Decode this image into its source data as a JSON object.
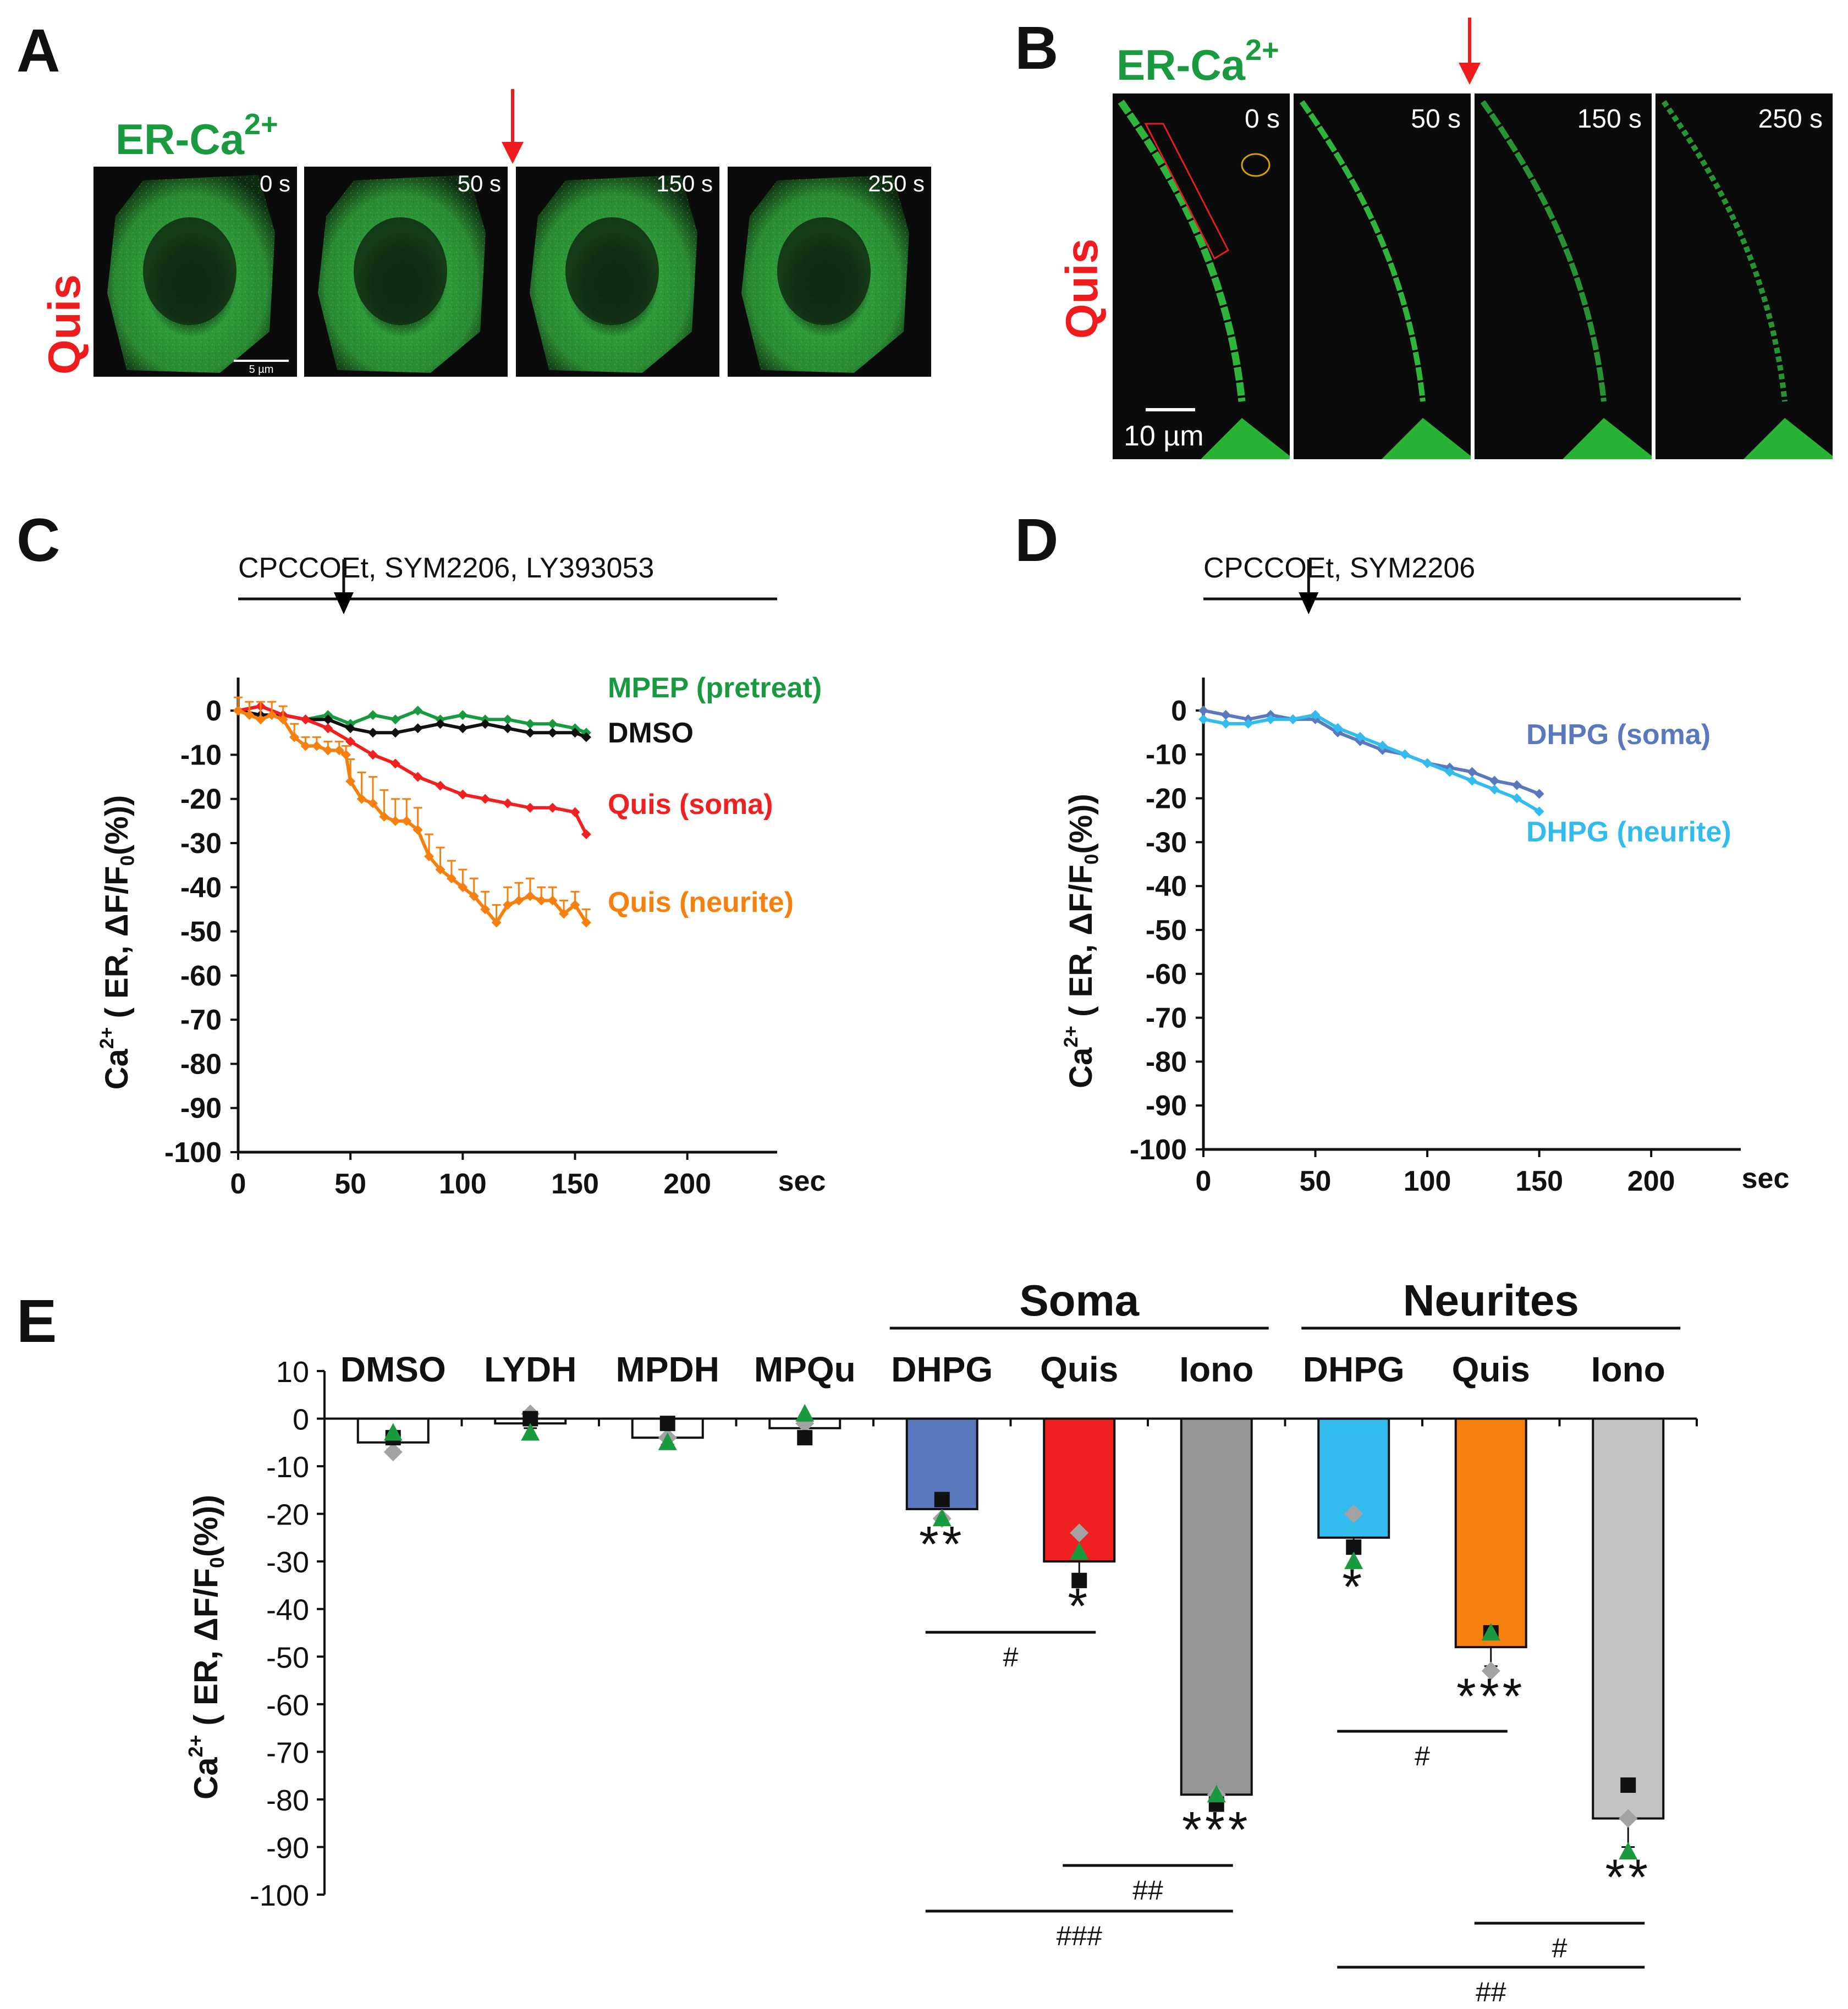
{
  "panels": {
    "A": {
      "letter": "A",
      "probe_label": "ER-Ca",
      "probe_sup": "2+",
      "condition": "Quis",
      "timepoints": [
        "0 s",
        "50 s",
        "150 s",
        "250 s"
      ],
      "scale_bar": "5 µm"
    },
    "B": {
      "letter": "B",
      "probe_label": "ER-Ca",
      "probe_sup": "2+",
      "condition": "Quis",
      "timepoints": [
        "0 s",
        "50 s",
        "150 s",
        "250 s"
      ],
      "scale_bar": "10 µm"
    },
    "C": {
      "letter": "C",
      "treatment": "CPCCOEt, SYM2206, LY393053"
    },
    "D": {
      "letter": "D",
      "treatment": "CPCCOEt, SYM2206"
    },
    "E": {
      "letter": "E"
    }
  },
  "ylabel": {
    "ca": "Ca",
    "sup": "2+",
    "rest": " ( ER, ΔF/F",
    "sub": "0",
    "end": "(%))"
  },
  "colors": {
    "mpep": "#1a9a3e",
    "dmso": "#111111",
    "quis_soma": "#f02020",
    "quis_neurite": "#f77f0e",
    "dhpg_soma": "#5a78be",
    "dhpg_neurite": "#33bbee",
    "iono_soma": "#959595",
    "iono_neurite": "#c4c4c4",
    "arrow_red": "#ee1c1c",
    "green_text": "#1a9a3e",
    "red_text": "#ee1c1c"
  },
  "chart_data": [
    {
      "id": "C",
      "type": "line",
      "xlabel": "sec",
      "xlim": [
        0,
        240
      ],
      "ylim": [
        -100,
        5
      ],
      "xticks": [
        0,
        50,
        100,
        150,
        200
      ],
      "yticks": [
        0,
        -10,
        -20,
        -30,
        -40,
        -50,
        -60,
        -70,
        -80,
        -90,
        -100
      ],
      "stimulus_time": 47,
      "series": [
        {
          "name": "MPEP (pretreat)",
          "color": "#1a9a3e",
          "x": [
            0,
            10,
            20,
            30,
            40,
            50,
            60,
            70,
            80,
            90,
            100,
            110,
            120,
            130,
            140,
            150,
            155
          ],
          "y": [
            0,
            1,
            -1,
            -2,
            -1,
            -3,
            -1,
            -2,
            0,
            -2,
            -1,
            -2,
            -2,
            -3,
            -3,
            -4,
            -5
          ]
        },
        {
          "name": "DMSO",
          "color": "#111111",
          "x": [
            0,
            10,
            20,
            30,
            40,
            50,
            60,
            70,
            80,
            90,
            100,
            110,
            120,
            130,
            140,
            150,
            155
          ],
          "y": [
            0,
            -1,
            -1,
            -2,
            -2,
            -4,
            -5,
            -5,
            -4,
            -3,
            -4,
            -3,
            -4,
            -5,
            -5,
            -5,
            -6
          ]
        },
        {
          "name": "Quis (soma)",
          "color": "#f02020",
          "x": [
            0,
            10,
            20,
            30,
            40,
            50,
            60,
            70,
            80,
            90,
            100,
            110,
            120,
            130,
            140,
            150,
            155
          ],
          "y": [
            0,
            1,
            -1,
            -2,
            -4,
            -7,
            -10,
            -12,
            -15,
            -17,
            -19,
            -20,
            -21,
            -22,
            -22,
            -23,
            -28
          ]
        },
        {
          "name": "Quis (neurite)",
          "color": "#f77f0e",
          "x": [
            0,
            5,
            10,
            15,
            20,
            25,
            30,
            35,
            40,
            45,
            48,
            50,
            55,
            60,
            65,
            70,
            75,
            80,
            85,
            90,
            95,
            100,
            105,
            110,
            115,
            120,
            125,
            130,
            135,
            140,
            145,
            150,
            155
          ],
          "y": [
            0,
            -1,
            -2,
            -1,
            -2,
            -6,
            -8,
            -8,
            -9,
            -9,
            -10,
            -16,
            -20,
            -21,
            -24,
            -25,
            -25,
            -27,
            -33,
            -36,
            -38,
            -40,
            -42,
            -45,
            -48,
            -44,
            -43,
            -42,
            -43,
            -43,
            -46,
            -44,
            -48
          ],
          "err": [
            3,
            3,
            4,
            3,
            3,
            3,
            2,
            2,
            2,
            2,
            2,
            5,
            6,
            6,
            6,
            5,
            5,
            5,
            5,
            5,
            4,
            4,
            4,
            4,
            4,
            4,
            4,
            4,
            3,
            3,
            3,
            3,
            3
          ]
        }
      ],
      "annotations": [
        "MPEP (pretreat)",
        "DMSO",
        "Quis (soma)",
        "Quis (neurite)"
      ]
    },
    {
      "id": "D",
      "type": "line",
      "xlabel": "sec",
      "xlim": [
        0,
        240
      ],
      "ylim": [
        -100,
        5
      ],
      "xticks": [
        0,
        50,
        100,
        150,
        200
      ],
      "yticks": [
        0,
        -10,
        -20,
        -30,
        -40,
        -50,
        -60,
        -70,
        -80,
        -90,
        -100
      ],
      "stimulus_time": 47,
      "series": [
        {
          "name": "DHPG (soma)",
          "color": "#5a78be",
          "x": [
            0,
            10,
            20,
            30,
            40,
            50,
            60,
            70,
            80,
            90,
            100,
            110,
            120,
            130,
            140,
            150
          ],
          "y": [
            0,
            -1,
            -2,
            -1,
            -2,
            -2,
            -5,
            -7,
            -9,
            -10,
            -12,
            -13,
            -14,
            -16,
            -17,
            -19
          ]
        },
        {
          "name": "DHPG (neurite)",
          "color": "#33bbee",
          "x": [
            0,
            10,
            20,
            30,
            40,
            50,
            60,
            70,
            80,
            90,
            100,
            110,
            120,
            130,
            140,
            150
          ],
          "y": [
            -2,
            -3,
            -3,
            -2,
            -2,
            -1,
            -4,
            -6,
            -8,
            -10,
            -12,
            -14,
            -16,
            -18,
            -20,
            -23
          ]
        }
      ],
      "annotations": [
        "DHPG (soma)",
        "DHPG (neurite)"
      ]
    },
    {
      "id": "E",
      "type": "bar",
      "ylim": [
        -100,
        10
      ],
      "yticks": [
        10,
        0,
        -10,
        -20,
        -30,
        -40,
        -50,
        -60,
        -70,
        -80,
        -90,
        -100
      ],
      "group_labels": [
        "Soma",
        "Neurites"
      ],
      "categories": [
        "DMSO",
        "LYDH",
        "MPDH",
        "MPQu",
        "DHPG",
        "Quis",
        "Iono",
        "DHPG",
        "Quis",
        "Iono"
      ],
      "values": [
        -5,
        -1,
        -4,
        -2,
        -19,
        -30,
        -79,
        -25,
        -48,
        -84
      ],
      "colors": [
        "#ffffff",
        "#ffffff",
        "#ffffff",
        "#ffffff",
        "#5a78be",
        "#f02020",
        "#959595",
        "#33bbee",
        "#f77f0e",
        "#c4c4c4"
      ],
      "errors": [
        1.5,
        1,
        1.5,
        1,
        1.5,
        3,
        1.5,
        3,
        4,
        6
      ],
      "points": {
        "square": [
          -4,
          0,
          -1,
          -4,
          -17,
          -34,
          -81,
          -27,
          -45,
          -77
        ],
        "diamond": [
          -7,
          1,
          -4,
          -1,
          -21,
          -24,
          -79,
          -20,
          -53,
          -84
        ],
        "triangle": [
          -3,
          -3,
          -5,
          1,
          -21,
          -28,
          -79,
          -30,
          -45,
          -91
        ]
      },
      "significance": [
        "",
        "",
        "",
        "",
        "**",
        "*",
        "***",
        "*",
        "***",
        "**"
      ],
      "comparisons": [
        {
          "from": "DHPG (soma)",
          "to": "Quis (soma)",
          "label": "#"
        },
        {
          "from": "Quis (soma)",
          "to": "Iono (soma)",
          "label": "##"
        },
        {
          "from": "DHPG (soma)",
          "to": "Iono (soma)",
          "label": "###"
        },
        {
          "from": "DHPG (neurite)",
          "to": "Quis (neurite)",
          "label": "#"
        },
        {
          "from": "Quis (neurite)",
          "to": "Iono (neurite)",
          "label": "#"
        },
        {
          "from": "DHPG (neurite)",
          "to": "Iono (neurite)",
          "label": "##"
        }
      ]
    }
  ]
}
